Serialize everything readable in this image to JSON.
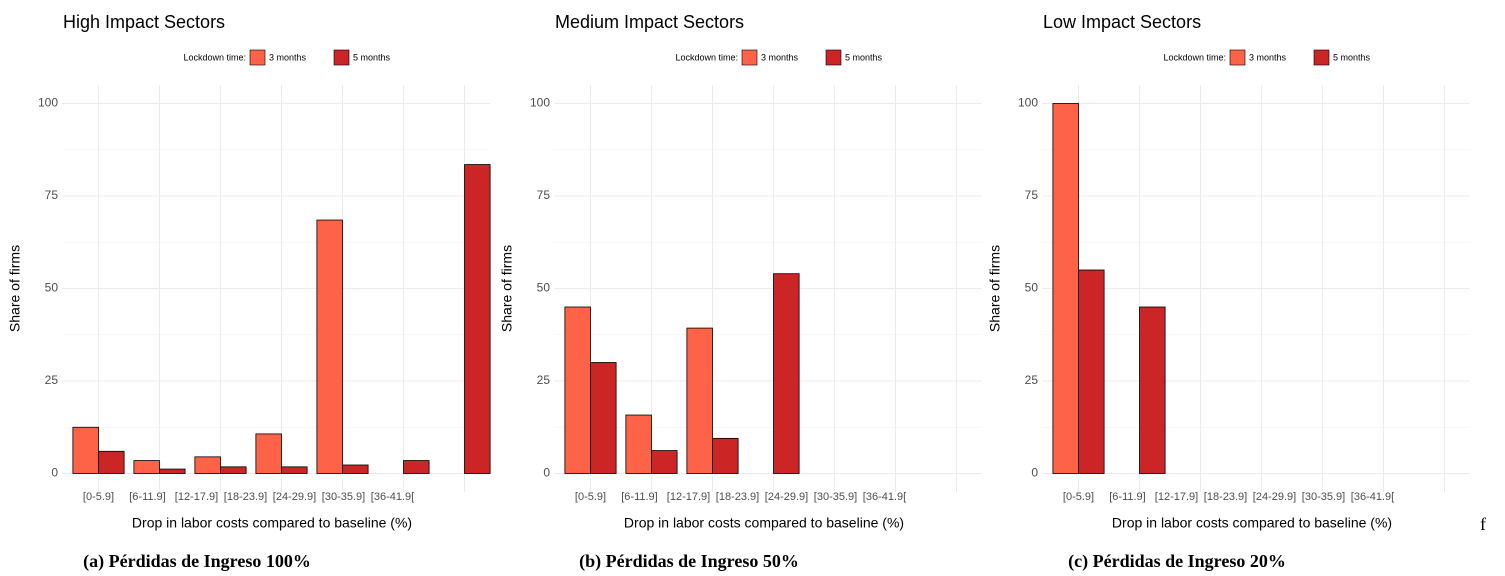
{
  "chart_data": [
    {
      "type": "bar",
      "title": "High Impact Sectors",
      "legend_title": "Lockdown time:",
      "x_label": "Drop in labor costs compared to baseline (%)",
      "y_label": "Share of firms",
      "categories": [
        "[0-5.9]",
        "[6-11.9]",
        "[12-17.9]",
        "[18-23.9]",
        "[24-29.9]",
        "[30-35.9]",
        "[36-41.9["
      ],
      "series": [
        {
          "name": "3 months",
          "color": "#fe6347",
          "values": [
            12.5,
            3.5,
            4.5,
            10.7,
            68.5,
            0,
            0
          ]
        },
        {
          "name": "5 months",
          "color": "#cc2526",
          "values": [
            6,
            1.2,
            1.8,
            1.8,
            2.3,
            3.5,
            83.5
          ]
        }
      ],
      "ylim": [
        -5,
        105
      ],
      "yticks": [
        0,
        25,
        50,
        75,
        100
      ],
      "grid": true,
      "caption": "(a) Pérdidas de Ingreso 100%"
    },
    {
      "type": "bar",
      "title": "Medium Impact Sectors",
      "legend_title": "Lockdown time:",
      "x_label": "Drop in labor costs compared to baseline (%)",
      "y_label": "Share of firms",
      "categories": [
        "[0-5.9]",
        "[6-11.9]",
        "[12-17.9]",
        "[18-23.9]",
        "[24-29.9]",
        "[30-35.9]",
        "[36-41.9["
      ],
      "series": [
        {
          "name": "3 months",
          "color": "#fe6347",
          "values": [
            45,
            15.8,
            39.3,
            0,
            0,
            0,
            0
          ]
        },
        {
          "name": "5 months",
          "color": "#cc2526",
          "values": [
            30,
            6.2,
            9.5,
            54,
            0,
            0,
            0
          ]
        }
      ],
      "ylim": [
        -5,
        105
      ],
      "yticks": [
        0,
        25,
        50,
        75,
        100
      ],
      "grid": true,
      "caption": "(b) Pérdidas de Ingreso 50%"
    },
    {
      "type": "bar",
      "title": "Low Impact Sectors",
      "legend_title": "Lockdown time:",
      "x_label": "Drop in labor costs compared to baseline (%)",
      "y_label": "Share of firms",
      "categories": [
        "[0-5.9]",
        "[6-11.9]",
        "[12-17.9]",
        "[18-23.9]",
        "[24-29.9]",
        "[30-35.9]",
        "[36-41.9["
      ],
      "series": [
        {
          "name": "3 months",
          "color": "#fe6347",
          "values": [
            100,
            0,
            0,
            0,
            0,
            0,
            0
          ]
        },
        {
          "name": "5 months",
          "color": "#cc2526",
          "values": [
            55,
            45,
            0,
            0,
            0,
            0,
            0
          ]
        }
      ],
      "ylim": [
        -5,
        105
      ],
      "yticks": [
        0,
        25,
        50,
        75,
        100
      ],
      "grid": true,
      "caption": "(c) Pérdidas de Ingreso 20%"
    }
  ],
  "annotation": "f"
}
